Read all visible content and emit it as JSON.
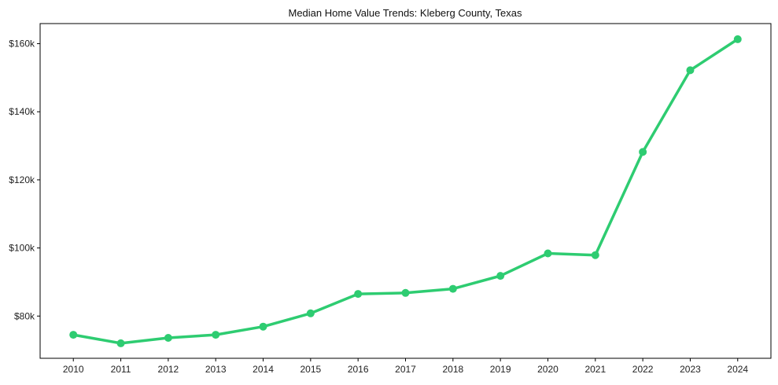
{
  "chart_data": {
    "type": "line",
    "title": "Median Home Value Trends: Kleberg County, Texas",
    "xlabel": "",
    "ylabel": "",
    "x": [
      2010,
      2011,
      2012,
      2013,
      2014,
      2015,
      2016,
      2017,
      2018,
      2019,
      2020,
      2021,
      2022,
      2023,
      2024
    ],
    "x_tick_labels": [
      "2010",
      "2011",
      "2012",
      "2013",
      "2014",
      "2015",
      "2016",
      "2017",
      "2018",
      "2019",
      "2020",
      "2021",
      "2022",
      "2023",
      "2024"
    ],
    "series": [
      {
        "name": "Median Home Value",
        "color": "#2ecc71",
        "values": [
          74.5,
          72.0,
          73.6,
          74.5,
          76.9,
          80.8,
          86.5,
          86.8,
          88.0,
          91.8,
          98.4,
          97.9,
          128.2,
          152.2,
          161.3
        ]
      }
    ],
    "value_unit": "thousands USD",
    "y_ticks": [
      80,
      100,
      120,
      140,
      160
    ],
    "y_tick_labels": [
      "$80k",
      "$100k",
      "$120k",
      "$140k",
      "$160k"
    ],
    "xlim": [
      2009.3,
      2024.7
    ],
    "ylim": [
      67.6,
      165.9
    ],
    "grid": false,
    "legend": "none"
  }
}
